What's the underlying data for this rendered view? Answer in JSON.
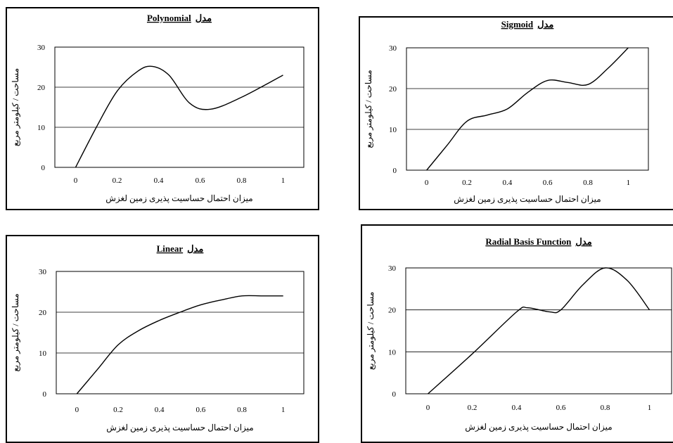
{
  "chart_data": [
    {
      "type": "line",
      "title_en": "Polynomial",
      "title_fa": "مدل",
      "xlabel": "میزان احتمال حساسیت پذیری زمین لغزش",
      "ylabel": "مساحت / کیلومتر مربع",
      "x_ticks": [
        "0",
        "0.2",
        "0.4",
        "0.6",
        "0.8",
        "1"
      ],
      "y_ticks": [
        "0",
        "10",
        "20",
        "30"
      ],
      "xlim": [
        -0.1,
        1.1
      ],
      "ylim": [
        0,
        30
      ],
      "series": [
        {
          "x": [
            0,
            0.1,
            0.2,
            0.3,
            0.37,
            0.45,
            0.55,
            0.65,
            0.8,
            1
          ],
          "y": [
            0,
            10,
            19,
            24,
            25.2,
            23,
            16,
            14.5,
            17.5,
            23
          ]
        }
      ]
    },
    {
      "type": "line",
      "title_en": "Sigmoid",
      "title_fa": "مدل",
      "xlabel": "میزان احتمال حساسیت پذیری زمین لغزش",
      "ylabel": "مساحت / کیلومتر مربع",
      "x_ticks": [
        "0",
        "0.2",
        "0.4",
        "0.6",
        "0.8",
        "1"
      ],
      "y_ticks": [
        "0",
        "10",
        "20",
        "30"
      ],
      "xlim": [
        -0.1,
        1.1
      ],
      "ylim": [
        0,
        30
      ],
      "series": [
        {
          "x": [
            0,
            0.1,
            0.2,
            0.3,
            0.4,
            0.5,
            0.6,
            0.7,
            0.8,
            0.9,
            1
          ],
          "y": [
            0,
            6,
            12,
            13.5,
            15,
            19,
            22,
            21.5,
            21,
            25,
            30
          ]
        }
      ]
    },
    {
      "type": "line",
      "title_en": "Linear",
      "title_fa": "مدل",
      "xlabel": "میزان احتمال حساسیت پذیری زمین لغزش",
      "ylabel": "مساحت / کیلومتر مربع",
      "x_ticks": [
        "0",
        "0.2",
        "0.4",
        "0.6",
        "0.8",
        "1"
      ],
      "y_ticks": [
        "0",
        "10",
        "20",
        "30"
      ],
      "xlim": [
        -0.1,
        1.1
      ],
      "ylim": [
        0,
        30
      ],
      "series": [
        {
          "x": [
            0,
            0.1,
            0.2,
            0.3,
            0.4,
            0.5,
            0.6,
            0.7,
            0.8,
            0.9,
            1
          ],
          "y": [
            0,
            6,
            12,
            15.5,
            18,
            20,
            21.8,
            23,
            24,
            24,
            24
          ]
        }
      ]
    },
    {
      "type": "line",
      "title_en": "Radial Basis Function",
      "title_fa": "مدل",
      "xlabel": "میزان احتمال حساسیت پذیری زمین لغزش",
      "ylabel": "مساحت / کیلومتر مربع",
      "x_ticks": [
        "0",
        "0.2",
        "0.4",
        "0.6",
        "0.8",
        "1"
      ],
      "y_ticks": [
        "0",
        "10",
        "20",
        "30"
      ],
      "xlim": [
        -0.1,
        1.1
      ],
      "ylim": [
        0,
        30
      ],
      "series": [
        {
          "x": [
            0,
            0.2,
            0.4,
            0.45,
            0.55,
            0.6,
            0.7,
            0.8,
            0.9,
            1
          ],
          "y": [
            0,
            9.5,
            19.5,
            20.5,
            19.5,
            20,
            26,
            30,
            27,
            20
          ]
        }
      ]
    }
  ]
}
